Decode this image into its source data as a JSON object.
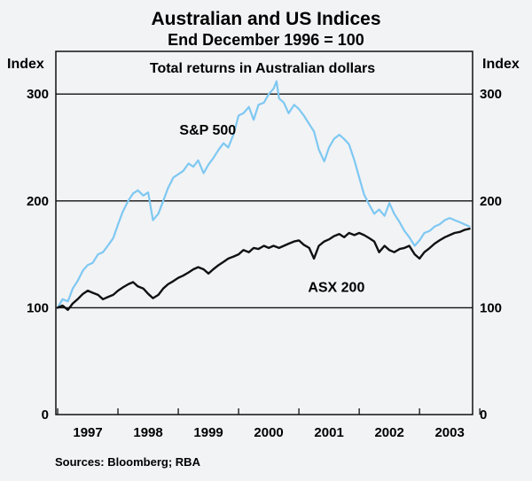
{
  "chart_data": {
    "type": "line",
    "title": "Australian and US Indices",
    "subtitle": "End December 1996 = 100",
    "panel_title": "Total returns in Australian dollars",
    "ylabel_left": "Index",
    "ylabel_right": "Index",
    "ylim": [
      0,
      340
    ],
    "yticks": [
      0,
      100,
      200,
      300
    ],
    "xlim": [
      1996.97,
      2003.88
    ],
    "xticks": [
      "1997",
      "1998",
      "1999",
      "2000",
      "2001",
      "2002",
      "2003"
    ],
    "grid": "horizontal",
    "series": [
      {
        "name": "S&P 500",
        "color": "#7ec8f2",
        "points": [
          [
            1997.0,
            100
          ],
          [
            1997.08,
            108
          ],
          [
            1997.17,
            106
          ],
          [
            1997.25,
            118
          ],
          [
            1997.33,
            125
          ],
          [
            1997.42,
            135
          ],
          [
            1997.5,
            140
          ],
          [
            1997.58,
            142
          ],
          [
            1997.67,
            150
          ],
          [
            1997.75,
            152
          ],
          [
            1997.83,
            158
          ],
          [
            1997.92,
            165
          ],
          [
            1998.0,
            178
          ],
          [
            1998.08,
            190
          ],
          [
            1998.17,
            200
          ],
          [
            1998.25,
            207
          ],
          [
            1998.33,
            210
          ],
          [
            1998.42,
            205
          ],
          [
            1998.5,
            208
          ],
          [
            1998.58,
            182
          ],
          [
            1998.67,
            188
          ],
          [
            1998.75,
            200
          ],
          [
            1998.83,
            212
          ],
          [
            1998.92,
            222
          ],
          [
            1999.0,
            225
          ],
          [
            1999.08,
            228
          ],
          [
            1999.17,
            235
          ],
          [
            1999.25,
            232
          ],
          [
            1999.33,
            238
          ],
          [
            1999.42,
            226
          ],
          [
            1999.5,
            234
          ],
          [
            1999.58,
            240
          ],
          [
            1999.67,
            248
          ],
          [
            1999.75,
            254
          ],
          [
            1999.83,
            250
          ],
          [
            1999.92,
            263
          ],
          [
            2000.0,
            280
          ],
          [
            2000.08,
            282
          ],
          [
            2000.17,
            288
          ],
          [
            2000.25,
            276
          ],
          [
            2000.33,
            290
          ],
          [
            2000.42,
            292
          ],
          [
            2000.5,
            300
          ],
          [
            2000.58,
            305
          ],
          [
            2000.63,
            312
          ],
          [
            2000.67,
            296
          ],
          [
            2000.75,
            292
          ],
          [
            2000.83,
            282
          ],
          [
            2000.92,
            290
          ],
          [
            2001.0,
            286
          ],
          [
            2001.08,
            280
          ],
          [
            2001.17,
            272
          ],
          [
            2001.25,
            265
          ],
          [
            2001.33,
            248
          ],
          [
            2001.42,
            237
          ],
          [
            2001.5,
            250
          ],
          [
            2001.58,
            258
          ],
          [
            2001.67,
            262
          ],
          [
            2001.75,
            258
          ],
          [
            2001.83,
            253
          ],
          [
            2001.92,
            238
          ],
          [
            2002.0,
            222
          ],
          [
            2002.08,
            206
          ],
          [
            2002.17,
            196
          ],
          [
            2002.25,
            188
          ],
          [
            2002.33,
            192
          ],
          [
            2002.42,
            186
          ],
          [
            2002.5,
            198
          ],
          [
            2002.58,
            188
          ],
          [
            2002.67,
            180
          ],
          [
            2002.75,
            172
          ],
          [
            2002.83,
            166
          ],
          [
            2002.92,
            158
          ],
          [
            2003.0,
            163
          ],
          [
            2003.08,
            170
          ],
          [
            2003.17,
            172
          ],
          [
            2003.25,
            176
          ],
          [
            2003.33,
            178
          ],
          [
            2003.42,
            182
          ],
          [
            2003.5,
            184
          ],
          [
            2003.58,
            182
          ],
          [
            2003.67,
            180
          ],
          [
            2003.75,
            178
          ],
          [
            2003.83,
            176
          ]
        ]
      },
      {
        "name": "ASX 200",
        "color": "#111111",
        "points": [
          [
            1997.0,
            100
          ],
          [
            1997.08,
            102
          ],
          [
            1997.17,
            98
          ],
          [
            1997.25,
            104
          ],
          [
            1997.33,
            108
          ],
          [
            1997.42,
            113
          ],
          [
            1997.5,
            116
          ],
          [
            1997.58,
            114
          ],
          [
            1997.67,
            112
          ],
          [
            1997.75,
            108
          ],
          [
            1997.83,
            110
          ],
          [
            1997.92,
            112
          ],
          [
            1998.0,
            116
          ],
          [
            1998.08,
            119
          ],
          [
            1998.17,
            122
          ],
          [
            1998.25,
            124
          ],
          [
            1998.33,
            120
          ],
          [
            1998.42,
            118
          ],
          [
            1998.5,
            113
          ],
          [
            1998.58,
            109
          ],
          [
            1998.67,
            112
          ],
          [
            1998.75,
            118
          ],
          [
            1998.83,
            122
          ],
          [
            1998.92,
            125
          ],
          [
            1999.0,
            128
          ],
          [
            1999.08,
            130
          ],
          [
            1999.17,
            133
          ],
          [
            1999.25,
            136
          ],
          [
            1999.33,
            138
          ],
          [
            1999.42,
            136
          ],
          [
            1999.5,
            132
          ],
          [
            1999.58,
            136
          ],
          [
            1999.67,
            140
          ],
          [
            1999.75,
            143
          ],
          [
            1999.83,
            146
          ],
          [
            1999.92,
            148
          ],
          [
            2000.0,
            150
          ],
          [
            2000.08,
            154
          ],
          [
            2000.17,
            152
          ],
          [
            2000.25,
            156
          ],
          [
            2000.33,
            155
          ],
          [
            2000.42,
            158
          ],
          [
            2000.5,
            156
          ],
          [
            2000.58,
            158
          ],
          [
            2000.67,
            156
          ],
          [
            2000.75,
            158
          ],
          [
            2000.83,
            160
          ],
          [
            2000.92,
            162
          ],
          [
            2001.0,
            163
          ],
          [
            2001.08,
            159
          ],
          [
            2001.17,
            156
          ],
          [
            2001.25,
            146
          ],
          [
            2001.33,
            158
          ],
          [
            2001.42,
            162
          ],
          [
            2001.5,
            164
          ],
          [
            2001.58,
            167
          ],
          [
            2001.67,
            169
          ],
          [
            2001.75,
            166
          ],
          [
            2001.83,
            170
          ],
          [
            2001.92,
            168
          ],
          [
            2002.0,
            170
          ],
          [
            2002.08,
            168
          ],
          [
            2002.17,
            165
          ],
          [
            2002.25,
            162
          ],
          [
            2002.33,
            152
          ],
          [
            2002.42,
            158
          ],
          [
            2002.5,
            154
          ],
          [
            2002.58,
            152
          ],
          [
            2002.67,
            155
          ],
          [
            2002.75,
            156
          ],
          [
            2002.83,
            158
          ],
          [
            2002.92,
            150
          ],
          [
            2003.0,
            146
          ],
          [
            2003.08,
            152
          ],
          [
            2003.17,
            156
          ],
          [
            2003.25,
            160
          ],
          [
            2003.33,
            163
          ],
          [
            2003.42,
            166
          ],
          [
            2003.5,
            168
          ],
          [
            2003.58,
            170
          ],
          [
            2003.67,
            171
          ],
          [
            2003.75,
            173
          ],
          [
            2003.83,
            174
          ]
        ]
      }
    ],
    "annotations": [
      {
        "text": "S&P 500",
        "x": 1999.02,
        "y": 262
      },
      {
        "text": "ASX 200",
        "x": 2001.15,
        "y": 115
      }
    ],
    "source": "Sources: Bloomberg; RBA"
  }
}
